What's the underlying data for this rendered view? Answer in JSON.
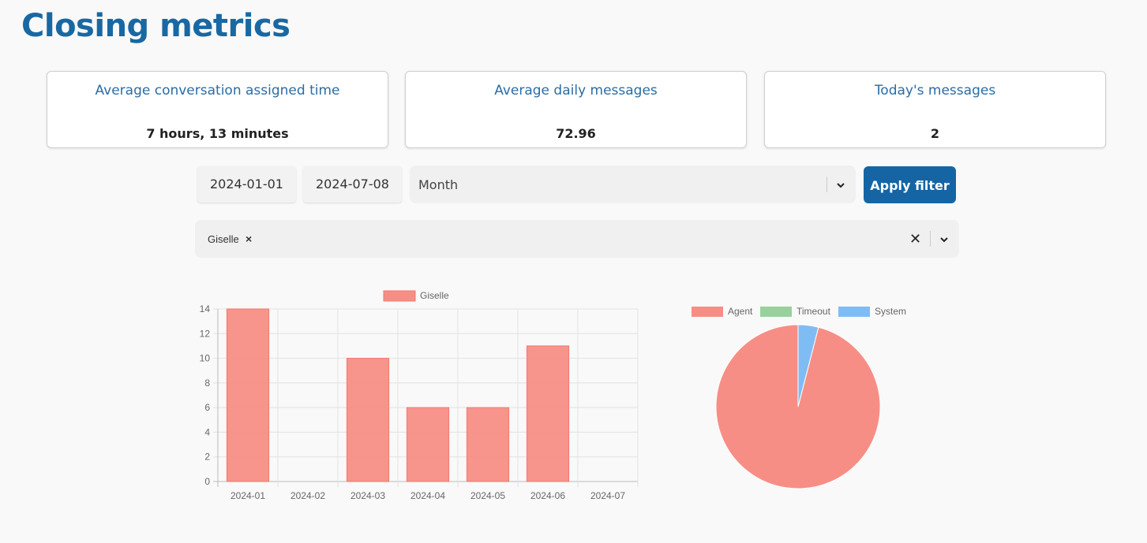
{
  "page": {
    "title": "Closing metrics"
  },
  "cards": [
    {
      "title": "Average conversation assigned time",
      "value": "7 hours, 13 minutes"
    },
    {
      "title": "Average daily messages",
      "value": "72.96"
    },
    {
      "title": "Today's messages",
      "value": "2"
    }
  ],
  "filters": {
    "start_date": "2024-01-01",
    "end_date": "2024-07-08",
    "period": "Month",
    "apply_label": "Apply filter",
    "agents": [
      {
        "label": "Giselle",
        "remove": "×"
      }
    ],
    "clear_label": "✕"
  },
  "colors": {
    "accent": "#1565a5",
    "title": "#1868a3",
    "agent": "#f78e86",
    "timeout": "#9ad09b",
    "system": "#7fbcf3"
  },
  "chart_data": [
    {
      "type": "bar",
      "categories": [
        "2024-01",
        "2024-02",
        "2024-03",
        "2024-04",
        "2024-05",
        "2024-06",
        "2024-07"
      ],
      "series": [
        {
          "name": "Giselle",
          "values": [
            14,
            0,
            10,
            6,
            6,
            11,
            0
          ],
          "color": "#f78e86"
        }
      ],
      "ylim": [
        0,
        14
      ],
      "yticks": [
        0,
        2,
        4,
        6,
        8,
        10,
        12,
        14
      ],
      "grid": true,
      "legend": "top"
    },
    {
      "type": "pie",
      "labels": [
        "Agent",
        "Timeout",
        "System"
      ],
      "values": [
        96,
        0,
        4
      ],
      "colors": [
        "#f78e86",
        "#9ad09b",
        "#7fbcf3"
      ],
      "legend": "top"
    }
  ]
}
